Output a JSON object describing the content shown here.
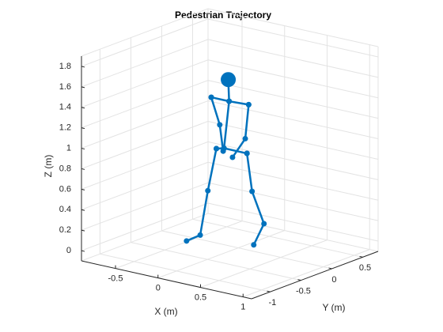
{
  "chart_data": {
    "type": "stick3d",
    "title": "Pedestrian Trajectory",
    "xlabel": "X (m)",
    "ylabel": "Y (m)",
    "zlabel": "Z (m)",
    "xlim": [
      -0.9,
      1.1
    ],
    "ylim": [
      -1.3,
      0.75
    ],
    "zlim": [
      -0.1,
      1.9
    ],
    "xticks": [
      -0.5,
      0,
      0.5,
      1
    ],
    "yticks": [
      -1,
      -0.5,
      0,
      0.5
    ],
    "zticks": [
      0,
      0.2,
      0.4,
      0.6,
      0.8,
      1,
      1.2,
      1.4,
      1.6,
      1.8
    ],
    "grid": true,
    "color": "#0072bd",
    "head": {
      "x": 0.1,
      "y": -0.3,
      "z": 1.63
    },
    "series": [
      {
        "x": [
          0.1,
          0.11,
          0.05
        ],
        "y": [
          -0.3,
          -0.3,
          -0.3
        ],
        "z": [
          1.63,
          1.42,
          0.95
        ]
      },
      {
        "x": [
          -0.1,
          0.11,
          0.34
        ],
        "y": [
          -0.3,
          -0.3,
          -0.3
        ],
        "z": [
          1.42,
          1.42,
          1.43
        ]
      },
      {
        "x": [
          -0.1,
          0.0,
          0.04
        ],
        "y": [
          -0.3,
          -0.3,
          -0.3
        ],
        "z": [
          1.42,
          1.17,
          0.92
        ]
      },
      {
        "x": [
          0.34,
          0.3,
          0.15
        ],
        "y": [
          -0.3,
          -0.3,
          -0.3
        ],
        "z": [
          1.43,
          1.09,
          0.88
        ]
      },
      {
        "x": [
          -0.04,
          0.05,
          0.32
        ],
        "y": [
          -0.3,
          -0.3,
          -0.3
        ],
        "z": [
          0.93,
          0.95,
          0.95
        ]
      },
      {
        "x": [
          -0.04,
          -0.14,
          -0.23,
          -0.1
        ],
        "y": [
          -0.3,
          -0.3,
          -0.3,
          -0.7
        ],
        "z": [
          0.93,
          0.5,
          0.05,
          0.107
        ]
      },
      {
        "x": [
          0.32,
          0.38,
          0.52,
          0.69
        ],
        "y": [
          -0.3,
          -0.3,
          -0.3,
          -0.7
        ],
        "z": [
          0.95,
          0.59,
          0.3,
          0.215
        ]
      }
    ]
  }
}
